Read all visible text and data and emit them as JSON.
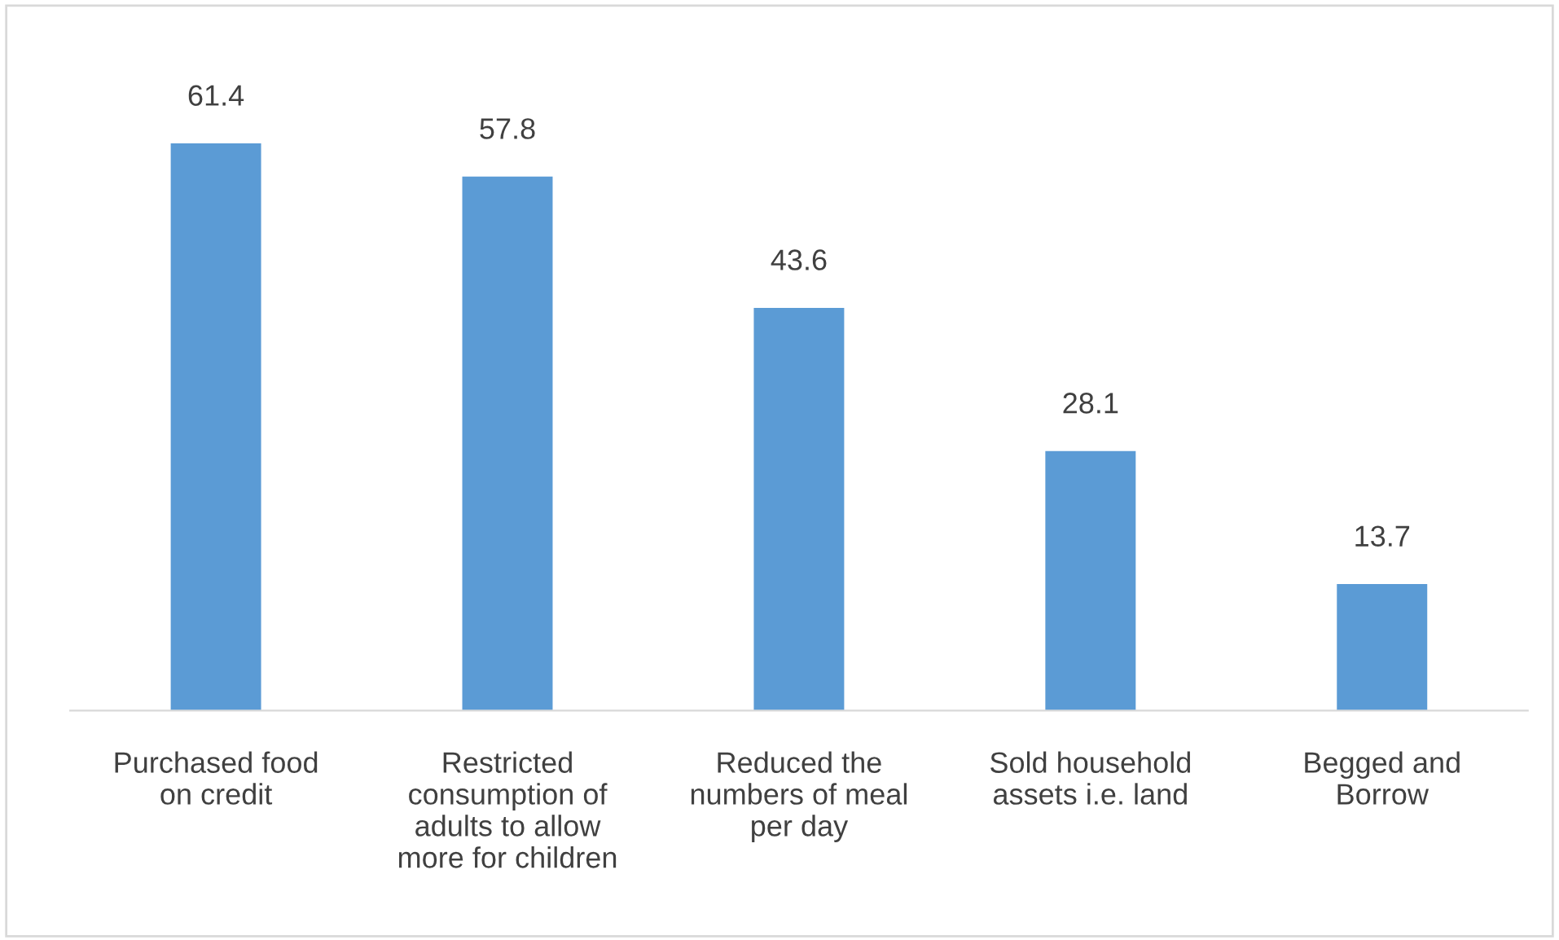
{
  "chart_data": {
    "type": "bar",
    "categories": [
      "Purchased food\non credit",
      "Restricted\nconsumption of\nadults to allow\nmore for children",
      "Reduced the\nnumbers of meal\nper day",
      "Sold household\nassets i.e. land",
      "Begged and\nBorrow"
    ],
    "values": [
      61.4,
      57.8,
      43.6,
      28.1,
      13.7
    ],
    "color": "#5b9bd5",
    "data_labels": true,
    "tick_labels": "x",
    "legend": false
  }
}
